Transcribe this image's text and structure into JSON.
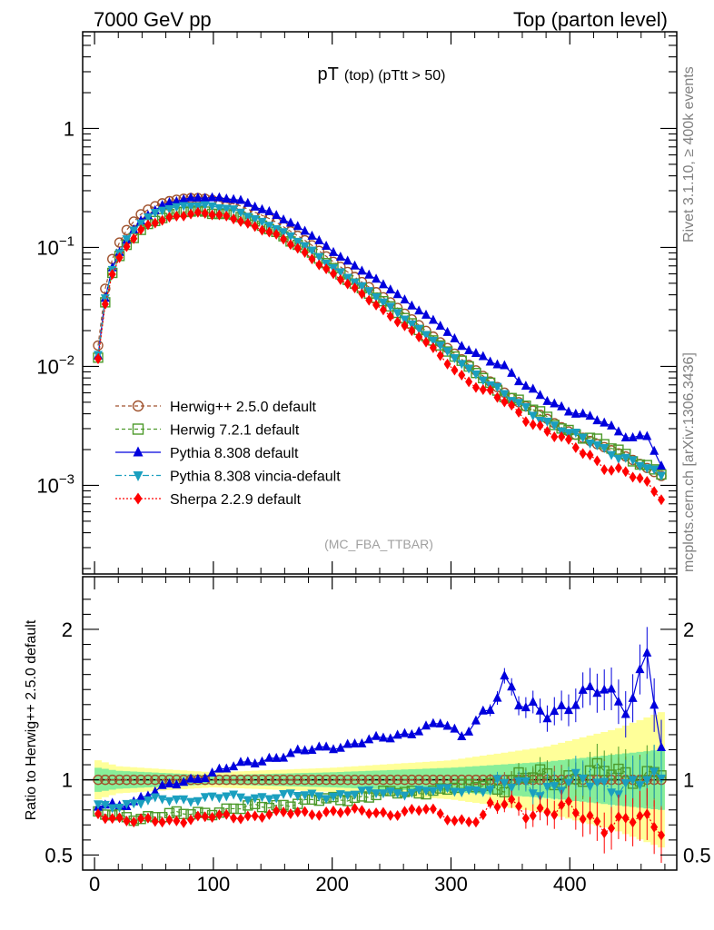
{
  "header": {
    "energy": "7000 GeV pp",
    "process": "Top (parton level)"
  },
  "side_text": {
    "rivet": "Rivet 3.1.10, ≥ 400k events",
    "mcplots": "mcplots.cern.ch [arXiv:1306.3436]"
  },
  "chart_data": {
    "type": "line",
    "title": "pT",
    "subtitle": "(top)  (pTtt > 50)",
    "analysis_label": "(MC_FBA_TTBAR)",
    "xlim": [
      -10,
      490
    ],
    "x_ticks": [
      "0",
      "100",
      "200",
      "300",
      "400"
    ],
    "top_panel": {
      "yscale": "log",
      "ylim": [
        0.00018,
        6.5
      ],
      "y_ticks": [
        {
          "value": 1,
          "base": "1",
          "exp": ""
        },
        {
          "value": 0.1,
          "base": "10",
          "exp": "−1"
        },
        {
          "value": 0.01,
          "base": "10",
          "exp": "−2"
        },
        {
          "value": 0.001,
          "base": "10",
          "exp": "−3"
        }
      ]
    },
    "ratio_panel": {
      "ylabel": "Ratio to Herwig++ 2.5.0 default",
      "ylim": [
        0.4,
        2.35
      ],
      "y_ticks": [
        "0.5",
        "1",
        "2"
      ]
    },
    "bin_centers_note": "bins of width 6 from 3 to 477",
    "series": [
      {
        "name": "Herwig++ 2.5.0 default",
        "color": "#a0522d",
        "marker": "circle-open",
        "dash": "4,3",
        "peak": {
          "x": 90,
          "y": 0.26
        },
        "ratio_knots": [
          [
            3,
            1.0
          ],
          [
            477,
            1.0
          ]
        ]
      },
      {
        "name": "Herwig 7.2.1 default",
        "color": "#4c9a2a",
        "marker": "square-open",
        "dash": "4,3",
        "peak": {
          "x": 90,
          "y": 0.21
        },
        "ratio_knots": [
          [
            3,
            0.77
          ],
          [
            30,
            0.75
          ],
          [
            60,
            0.76
          ],
          [
            100,
            0.79
          ],
          [
            150,
            0.83
          ],
          [
            200,
            0.87
          ],
          [
            250,
            0.91
          ],
          [
            300,
            0.94
          ],
          [
            350,
            0.99
          ],
          [
            400,
            1.03
          ],
          [
            477,
            1.05
          ]
        ]
      },
      {
        "name": "Pythia 8.308 default",
        "color": "#0000dd",
        "marker": "triangle-up",
        "dash": "",
        "peak": {
          "x": 92,
          "y": 0.27
        },
        "ratio_knots": [
          [
            3,
            0.82
          ],
          [
            30,
            0.85
          ],
          [
            60,
            0.95
          ],
          [
            100,
            1.05
          ],
          [
            150,
            1.15
          ],
          [
            200,
            1.22
          ],
          [
            250,
            1.28
          ],
          [
            290,
            1.38
          ],
          [
            310,
            1.28
          ],
          [
            345,
            1.65
          ],
          [
            360,
            1.45
          ],
          [
            400,
            1.5
          ],
          [
            430,
            1.6
          ],
          [
            450,
            1.5
          ],
          [
            465,
            1.85
          ],
          [
            477,
            1.15
          ]
        ]
      },
      {
        "name": "Pythia 8.308 vincia-default",
        "color": "#1a9fbf",
        "marker": "triangle-down",
        "dash": "7,3,2,3",
        "peak": {
          "x": 90,
          "y": 0.22
        },
        "ratio_knots": [
          [
            3,
            0.83
          ],
          [
            30,
            0.84
          ],
          [
            60,
            0.87
          ],
          [
            100,
            0.88
          ],
          [
            150,
            0.89
          ],
          [
            200,
            0.9
          ],
          [
            250,
            0.92
          ],
          [
            300,
            0.93
          ],
          [
            350,
            0.95
          ],
          [
            400,
            0.97
          ],
          [
            477,
            0.98
          ]
        ]
      },
      {
        "name": "Sherpa 2.2.9 default",
        "color": "#ff0000",
        "marker": "diamond",
        "dash": "2,2",
        "peak": {
          "x": 92,
          "y": 0.19
        },
        "ratio_knots": [
          [
            3,
            0.78
          ],
          [
            30,
            0.72
          ],
          [
            60,
            0.73
          ],
          [
            100,
            0.75
          ],
          [
            150,
            0.77
          ],
          [
            200,
            0.79
          ],
          [
            250,
            0.78
          ],
          [
            280,
            0.8
          ],
          [
            300,
            0.74
          ],
          [
            320,
            0.73
          ],
          [
            345,
            0.83
          ],
          [
            380,
            0.8
          ],
          [
            400,
            0.78
          ],
          [
            430,
            0.72
          ],
          [
            450,
            0.73
          ],
          [
            477,
            0.68
          ]
        ]
      }
    ],
    "nominal_shape": {
      "pre_peak_knots": [
        [
          3,
          0.015
        ],
        [
          9,
          0.045
        ],
        [
          15,
          0.08
        ],
        [
          21,
          0.11
        ],
        [
          27,
          0.14
        ],
        [
          33,
          0.165
        ],
        [
          39,
          0.19
        ],
        [
          45,
          0.208
        ],
        [
          51,
          0.222
        ],
        [
          57,
          0.235
        ],
        [
          63,
          0.245
        ],
        [
          69,
          0.252
        ],
        [
          75,
          0.257
        ],
        [
          81,
          0.26
        ],
        [
          90,
          0.26
        ]
      ],
      "post_peak_knots": [
        [
          90,
          0.26
        ],
        [
          120,
          0.23
        ],
        [
          150,
          0.17
        ],
        [
          180,
          0.11
        ],
        [
          200,
          0.077
        ],
        [
          250,
          0.034
        ],
        [
          300,
          0.0135
        ],
        [
          350,
          0.0055
        ],
        [
          400,
          0.0028
        ],
        [
          450,
          0.0017
        ],
        [
          477,
          0.0012
        ]
      ]
    },
    "bands": {
      "yellow_halfwidth_knots": [
        [
          3,
          0.13
        ],
        [
          20,
          0.09
        ],
        [
          100,
          0.05
        ],
        [
          200,
          0.08
        ],
        [
          300,
          0.13
        ],
        [
          380,
          0.22
        ],
        [
          440,
          0.34
        ],
        [
          477,
          0.45
        ]
      ],
      "green_halfwidth_knots": [
        [
          3,
          0.08
        ],
        [
          20,
          0.06
        ],
        [
          100,
          0.03
        ],
        [
          200,
          0.05
        ],
        [
          300,
          0.08
        ],
        [
          380,
          0.12
        ],
        [
          440,
          0.17
        ],
        [
          477,
          0.2
        ]
      ]
    }
  }
}
